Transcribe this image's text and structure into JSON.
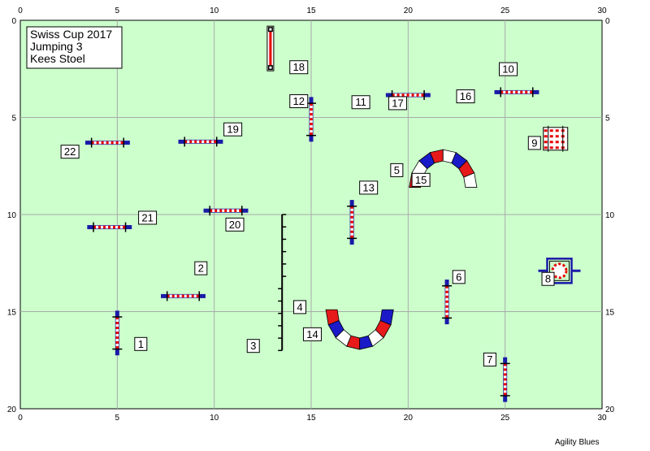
{
  "info_box": {
    "lines": [
      "Swiss Cup 2017",
      "Jumping 3",
      "Kees Stoel"
    ]
  },
  "brand": "Agility Blues",
  "axes": {
    "x": {
      "min": 0,
      "max": 30,
      "ticks": [
        0,
        5,
        10,
        15,
        20,
        25,
        30
      ]
    },
    "y": {
      "min": 0,
      "max": 20,
      "ticks": [
        0,
        5,
        10,
        15,
        20
      ]
    }
  },
  "colors": {
    "field": "#ccffcc",
    "grid": "#aaaaaa",
    "wing": "#1a1aa8",
    "pole_red": "#e60000",
    "tunnel_red": "#e61a1a",
    "tunnel_blue": "#1a1ac8"
  },
  "obstacles": [
    {
      "type": "jump",
      "cx": 4.5,
      "cy": 6.3,
      "len": 2.3,
      "orient": "h"
    },
    {
      "type": "jump",
      "cx": 9.3,
      "cy": 6.25,
      "len": 2.3,
      "orient": "h"
    },
    {
      "type": "jump",
      "cx": 10.6,
      "cy": 9.8,
      "len": 2.3,
      "orient": "h"
    },
    {
      "type": "jump",
      "cx": 4.6,
      "cy": 10.65,
      "len": 2.3,
      "orient": "h"
    },
    {
      "type": "jump",
      "cx": 8.4,
      "cy": 14.2,
      "len": 2.3,
      "orient": "h"
    },
    {
      "type": "jump",
      "cx": 17.1,
      "cy": 10.4,
      "len": 2.3,
      "orient": "v"
    },
    {
      "type": "jump",
      "cx": 15.0,
      "cy": 5.1,
      "len": 2.3,
      "orient": "v"
    },
    {
      "type": "jump",
      "cx": 20.0,
      "cy": 3.85,
      "len": 2.3,
      "orient": "h"
    },
    {
      "type": "jump",
      "cx": 25.6,
      "cy": 3.7,
      "len": 2.3,
      "orient": "h"
    },
    {
      "type": "jump",
      "cx": 22.0,
      "cy": 14.5,
      "len": 2.3,
      "orient": "v"
    },
    {
      "type": "jump",
      "cx": 5.0,
      "cy": 16.1,
      "len": 2.3,
      "orient": "v"
    },
    {
      "type": "jump",
      "cx": 25.0,
      "cy": 18.5,
      "len": 2.3,
      "orient": "v"
    },
    {
      "type": "weave",
      "x": 13.5,
      "y1": 10.0,
      "y2": 17.0,
      "poles": 12
    },
    {
      "type": "tire",
      "cx": 27.8,
      "cy": 12.9
    },
    {
      "type": "wall",
      "cx": 27.6,
      "cy": 6.1
    },
    {
      "type": "pole",
      "cx": 12.9,
      "y1": 0.3,
      "y2": 2.6
    },
    {
      "type": "tunnel",
      "cx": 21.8,
      "cy": 8.6,
      "rx": 1.45,
      "ry": 1.65,
      "dir": "up"
    },
    {
      "type": "tunnel",
      "cx": 17.5,
      "cy": 14.9,
      "rx": 1.45,
      "ry": 1.75,
      "dir": "down"
    }
  ],
  "labels": [
    {
      "text": "1",
      "x": 5.9,
      "y": 17.0
    },
    {
      "text": "2",
      "x": 9.0,
      "y": 13.1
    },
    {
      "text": "3",
      "x": 11.7,
      "y": 17.1
    },
    {
      "text": "4",
      "x": 14.1,
      "y": 15.1
    },
    {
      "text": "5",
      "x": 19.1,
      "y": 8.05
    },
    {
      "text": "6",
      "x": 22.3,
      "y": 13.55
    },
    {
      "text": "7",
      "x": 23.9,
      "y": 17.8
    },
    {
      "text": "8",
      "x": 26.9,
      "y": 13.65
    },
    {
      "text": "9",
      "x": 26.2,
      "y": 6.65
    },
    {
      "text": "10",
      "x": 24.7,
      "y": 2.85
    },
    {
      "text": "11",
      "x": 17.1,
      "y": 4.55
    },
    {
      "text": "12",
      "x": 13.9,
      "y": 4.5
    },
    {
      "text": "13",
      "x": 17.5,
      "y": 8.95
    },
    {
      "text": "14",
      "x": 14.6,
      "y": 16.5
    },
    {
      "text": "15",
      "x": 20.2,
      "y": 8.55
    },
    {
      "text": "16",
      "x": 22.5,
      "y": 4.25
    },
    {
      "text": "17",
      "x": 19.0,
      "y": 4.6
    },
    {
      "text": "18",
      "x": 13.9,
      "y": 2.75
    },
    {
      "text": "19",
      "x": 10.5,
      "y": 5.95
    },
    {
      "text": "20",
      "x": 10.6,
      "y": 10.85
    },
    {
      "text": "21",
      "x": 6.1,
      "y": 10.5
    },
    {
      "text": "22",
      "x": 2.1,
      "y": 7.1
    }
  ]
}
